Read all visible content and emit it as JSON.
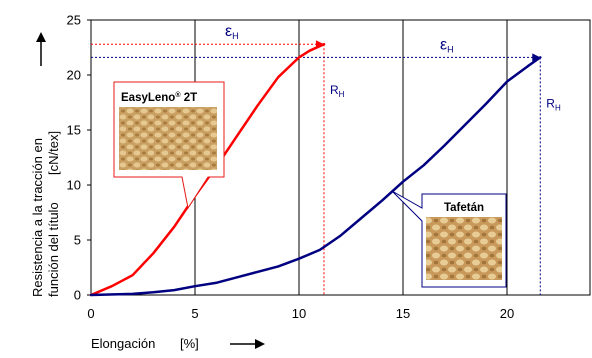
{
  "chart_data": {
    "type": "line",
    "xlabel": "Elongación",
    "xunit": "[%]",
    "ylabel_line1": "Resistencia a la tracción en",
    "ylabel_line2": "función del título",
    "yunit": "[cN/tex]",
    "xlim": [
      0,
      24
    ],
    "ylim": [
      0,
      25
    ],
    "x_ticks": [
      0,
      5,
      10,
      15,
      20
    ],
    "y_ticks": [
      0,
      5,
      10,
      15,
      20,
      25
    ],
    "x_gridlines": [
      5,
      10,
      15,
      20
    ],
    "grid": "vertical",
    "series": [
      {
        "name": "EasyLeno® 2T",
        "name_main": "EasyLeno",
        "name_sup": "®",
        "name_tail": " 2T",
        "color": "#ff0000",
        "x": [
          0,
          1,
          2,
          3,
          4,
          5,
          6,
          7,
          8,
          9,
          10,
          10.5,
          11.2
        ],
        "y": [
          0,
          0.8,
          1.8,
          3.8,
          6.2,
          9.0,
          11.6,
          14.4,
          17.2,
          19.8,
          21.6,
          22.2,
          22.8
        ],
        "breaking_strain": 11.2,
        "breaking_strength": 22.8
      },
      {
        "name": "Tafetán",
        "color": "#000080",
        "x": [
          0,
          2,
          3,
          4,
          5,
          6,
          7,
          8,
          9,
          10,
          11,
          12,
          13,
          14,
          15,
          16,
          17,
          18,
          19,
          20,
          21,
          21.6
        ],
        "y": [
          0,
          0.1,
          0.25,
          0.45,
          0.8,
          1.1,
          1.6,
          2.1,
          2.6,
          3.3,
          4.1,
          5.4,
          7.0,
          8.6,
          10.3,
          11.8,
          13.6,
          15.5,
          17.4,
          19.4,
          20.8,
          21.6
        ],
        "breaking_strain": 21.6,
        "breaking_strength": 21.6
      }
    ],
    "annotations": {
      "epsilon_symbol": "ε",
      "epsilon_sub": "H",
      "r_symbol": "R",
      "r_sub": "H"
    }
  }
}
